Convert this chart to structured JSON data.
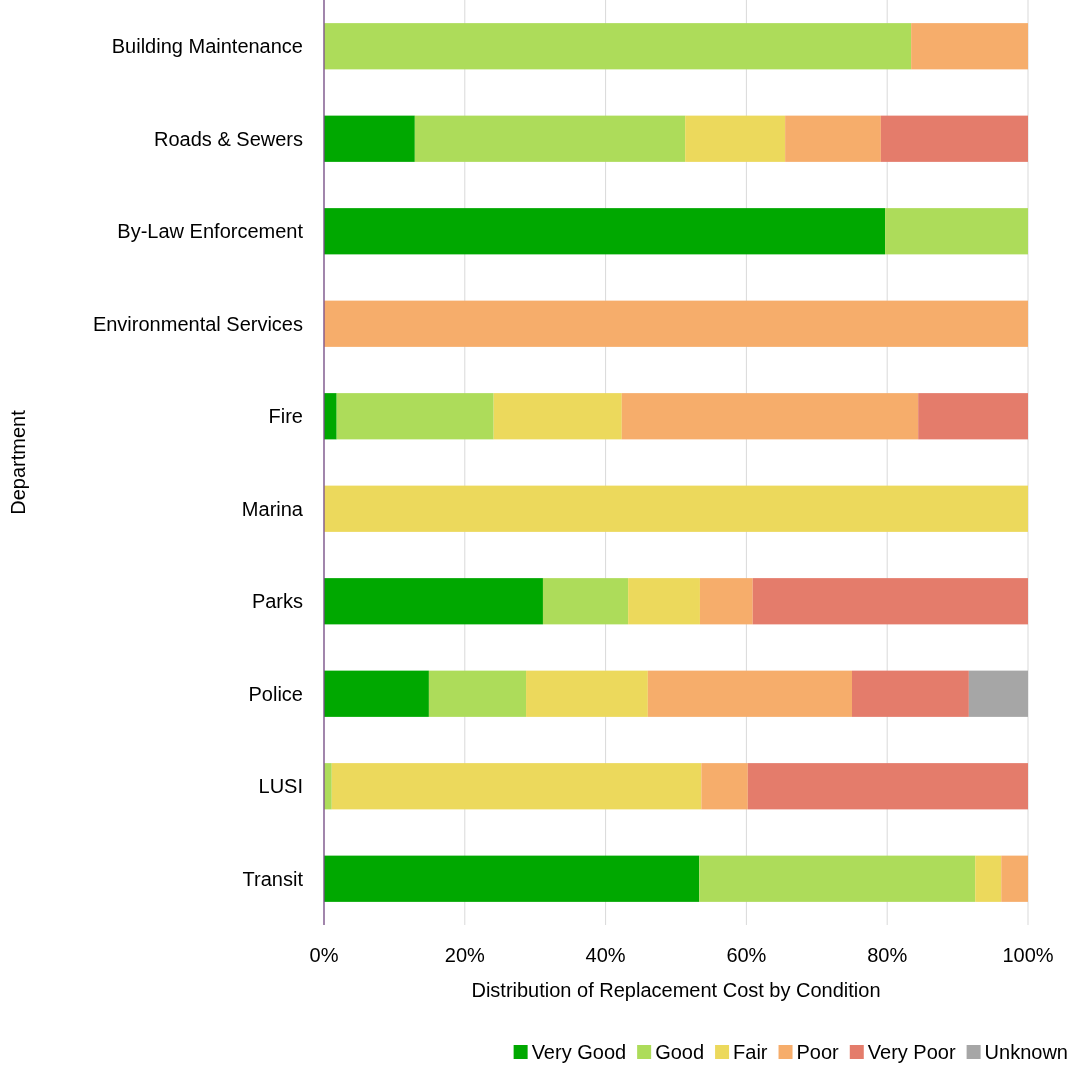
{
  "chart_data": {
    "type": "bar",
    "orientation": "horizontal",
    "stacked": true,
    "xlabel": "Distribution of Replacement Cost by Condition",
    "ylabel": "Department",
    "categories": [
      "Building Maintenance",
      "Roads & Sewers",
      "By-Law Enforcement",
      "Environmental Services",
      "Fire",
      "Marina",
      "Parks",
      "Police",
      "LUSI",
      "Transit"
    ],
    "series": [
      {
        "name": "Very Good",
        "color": "#00a800",
        "values": [
          0,
          12.9,
          79.7,
          0,
          1.8,
          0,
          31.1,
          14.9,
          0,
          53.3
        ]
      },
      {
        "name": "Good",
        "color": "#addc5a",
        "values": [
          83.4,
          38.4,
          20.3,
          0,
          22.3,
          0,
          12.1,
          13.8,
          1.1,
          39.2
        ]
      },
      {
        "name": "Fair",
        "color": "#ecd95c",
        "values": [
          0,
          14.2,
          0,
          0,
          18.2,
          100,
          10.2,
          17.3,
          52.5,
          3.7
        ]
      },
      {
        "name": "Poor",
        "color": "#f6ad6b",
        "values": [
          16.6,
          13.6,
          0,
          100,
          42.1,
          0,
          7.5,
          29.0,
          6.6,
          3.8
        ]
      },
      {
        "name": "Very Poor",
        "color": "#e47c6b",
        "values": [
          0,
          20.9,
          0,
          0,
          15.6,
          0,
          39.1,
          16.6,
          39.8,
          0
        ]
      },
      {
        "name": "Unknown",
        "color": "#a6a6a6",
        "values": [
          0,
          0,
          0,
          0,
          0,
          0,
          0,
          8.4,
          0,
          0
        ]
      }
    ],
    "xlim": [
      0,
      100
    ],
    "xticks": [
      {
        "value": 0,
        "label": "0%"
      },
      {
        "value": 20,
        "label": "20%"
      },
      {
        "value": 40,
        "label": "40%"
      },
      {
        "value": 60,
        "label": "60%"
      },
      {
        "value": 80,
        "label": "80%"
      },
      {
        "value": 100,
        "label": "100%"
      }
    ],
    "grid": "x",
    "legend": "bottom"
  }
}
